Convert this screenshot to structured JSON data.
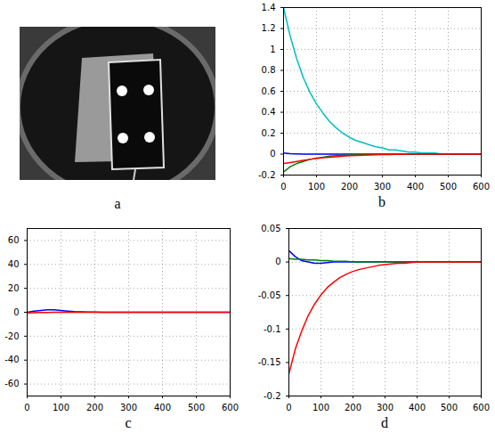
{
  "image": {
    "caption": "a"
  },
  "chart_data": [
    {
      "type": "line",
      "caption": "b",
      "x": [
        0,
        20,
        40,
        60,
        80,
        100,
        120,
        140,
        160,
        180,
        200,
        220,
        240,
        260,
        280,
        300,
        320,
        340,
        360,
        380,
        400,
        420,
        440,
        460,
        480,
        500,
        520,
        540,
        560,
        580,
        600
      ],
      "xlim": [
        0,
        600
      ],
      "xticks": [
        0,
        100,
        200,
        300,
        400,
        500,
        600
      ],
      "ylim": [
        -0.2,
        1.4
      ],
      "yticks": [
        -0.2,
        0,
        0.2,
        0.4,
        0.6,
        0.8,
        1,
        1.2,
        1.4
      ],
      "grid": true,
      "series": [
        {
          "color": "#00bfbf",
          "values": [
            1.4,
            1.13,
            0.91,
            0.73,
            0.59,
            0.48,
            0.39,
            0.31,
            0.25,
            0.2,
            0.16,
            0.13,
            0.11,
            0.09,
            0.07,
            0.06,
            0.04,
            0.04,
            0.03,
            0.02,
            0.02,
            0.01,
            0.01,
            0.01,
            0,
            0,
            0,
            0,
            0,
            0,
            0
          ]
        },
        {
          "color": "#0000ff",
          "values": [
            0.01,
            0.005,
            0.002,
            0,
            0,
            0,
            0,
            0,
            0,
            0,
            0,
            0,
            0,
            0,
            0,
            0,
            0,
            0,
            0,
            0,
            0,
            0,
            0,
            0,
            0,
            0,
            0,
            0,
            0,
            0,
            0
          ]
        },
        {
          "color": "#008000",
          "values": [
            -0.17,
            -0.12,
            -0.09,
            -0.07,
            -0.05,
            -0.04,
            -0.03,
            -0.02,
            -0.015,
            -0.01,
            -0.01,
            -0.005,
            -0.005,
            0,
            0,
            0,
            0,
            0,
            0,
            0,
            0,
            0,
            0,
            0,
            0,
            0,
            0,
            0,
            0,
            0,
            0
          ]
        },
        {
          "color": "#ff0000",
          "values": [
            -0.09,
            -0.08,
            -0.07,
            -0.06,
            -0.05,
            -0.04,
            -0.035,
            -0.03,
            -0.025,
            -0.02,
            -0.015,
            -0.012,
            -0.01,
            -0.008,
            -0.006,
            -0.005,
            -0.004,
            -0.003,
            -0.002,
            -0.001,
            0,
            0,
            0,
            0,
            0,
            0,
            0,
            0,
            0,
            0,
            0
          ]
        }
      ]
    },
    {
      "type": "line",
      "caption": "c",
      "x": [
        0,
        20,
        40,
        60,
        80,
        100,
        120,
        140,
        160,
        180,
        200,
        220,
        240,
        260,
        280,
        300,
        320,
        340,
        360,
        380,
        400,
        420,
        440,
        460,
        480,
        500,
        520,
        540,
        560,
        580,
        600
      ],
      "xlim": [
        0,
        600
      ],
      "xticks": [
        0,
        100,
        200,
        300,
        400,
        500,
        600
      ],
      "ylim": [
        -70,
        70
      ],
      "yticks": [
        -60,
        -40,
        -20,
        0,
        20,
        40,
        60
      ],
      "grid": true,
      "series": [
        {
          "color": "#0000ff",
          "values": [
            0,
            1,
            1.5,
            2,
            2,
            1.5,
            1,
            0.5,
            0.3,
            0.2,
            0.1,
            0,
            0,
            0,
            0,
            0,
            0,
            0,
            0,
            0,
            0,
            0,
            0,
            0,
            0,
            0,
            0,
            0,
            0,
            0,
            0
          ]
        },
        {
          "color": "#ff0000",
          "values": [
            -0.5,
            -0.3,
            -0.2,
            -0.1,
            0,
            0,
            0,
            0,
            0,
            0,
            0,
            0,
            0,
            0,
            0,
            0,
            0,
            0,
            0,
            0,
            0,
            0,
            0,
            0,
            0,
            0,
            0,
            0,
            0,
            0,
            0
          ]
        }
      ]
    },
    {
      "type": "line",
      "caption": "d",
      "x": [
        0,
        20,
        40,
        60,
        80,
        100,
        120,
        140,
        160,
        180,
        200,
        220,
        240,
        260,
        280,
        300,
        320,
        340,
        360,
        380,
        400,
        420,
        440,
        460,
        480,
        500,
        520,
        540,
        560,
        580,
        600
      ],
      "xlim": [
        0,
        600
      ],
      "xticks": [
        0,
        100,
        200,
        300,
        400,
        500,
        600
      ],
      "ylim": [
        -0.2,
        0.05
      ],
      "yticks": [
        -0.2,
        -0.15,
        -0.1,
        -0.05,
        0,
        0.05
      ],
      "grid": true,
      "series": [
        {
          "color": "#0000ff",
          "values": [
            0.017,
            0.008,
            0.002,
            0,
            -0.002,
            -0.002,
            -0.001,
            0,
            0,
            0,
            0,
            0,
            0,
            0,
            0,
            0,
            0,
            0,
            0,
            0,
            0,
            0,
            0,
            0,
            0,
            0,
            0,
            0,
            0,
            0,
            0
          ]
        },
        {
          "color": "#008000",
          "values": [
            0.005,
            0.004,
            0.004,
            0.003,
            0.003,
            0.002,
            0.002,
            0.001,
            0.001,
            0.001,
            0,
            0,
            0,
            0,
            0,
            0,
            0,
            0,
            0,
            0,
            0,
            0,
            0,
            0,
            0,
            0,
            0,
            0,
            0,
            0,
            0
          ]
        },
        {
          "color": "#ff0000",
          "values": [
            -0.167,
            -0.13,
            -0.103,
            -0.08,
            -0.063,
            -0.049,
            -0.038,
            -0.03,
            -0.023,
            -0.018,
            -0.014,
            -0.011,
            -0.009,
            -0.007,
            -0.005,
            -0.004,
            -0.003,
            -0.002,
            -0.002,
            -0.001,
            0,
            0,
            0,
            0,
            0,
            0,
            0,
            0,
            0,
            0,
            0
          ]
        }
      ]
    }
  ]
}
